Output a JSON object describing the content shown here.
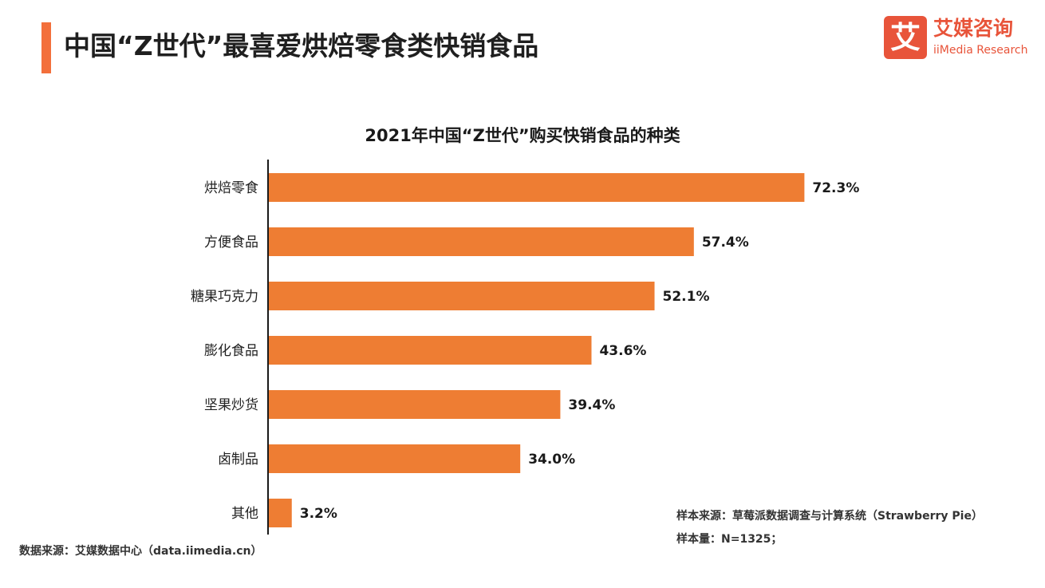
{
  "header": {
    "title": "中国“Z世代”最喜爱烘焙零食类快销食品"
  },
  "brand": {
    "mark": "艾",
    "name_cn": "艾媒咨询",
    "name_en": "iiMedia Research"
  },
  "colors": {
    "accent": "#f36f3b",
    "bar": "#ee7d33",
    "brand": "#e8543a"
  },
  "chart_data": {
    "type": "bar",
    "orientation": "horizontal",
    "title": "2021年中国“Z世代”购买快销食品的种类",
    "categories": [
      "烘焙零食",
      "方便食品",
      "糖果巧克力",
      "膨化食品",
      "坚果炒货",
      "卤制品",
      "其他"
    ],
    "values": [
      72.3,
      57.4,
      52.1,
      43.6,
      39.4,
      34.0,
      3.2
    ],
    "labels": [
      "72.3%",
      "57.4%",
      "52.1%",
      "43.6%",
      "39.4%",
      "34.0%",
      "3.2%"
    ],
    "unit": "%",
    "xlim": [
      0,
      100
    ],
    "grid": false,
    "legend": "none"
  },
  "notes": {
    "sample_source": "样本来源：草莓派数据调查与计算系统（Strawberry Pie）",
    "sample_size": "样本量：N=1325；"
  },
  "footer": {
    "data_source": "数据来源：艾媒数据中心（data.iimedia.cn）"
  }
}
